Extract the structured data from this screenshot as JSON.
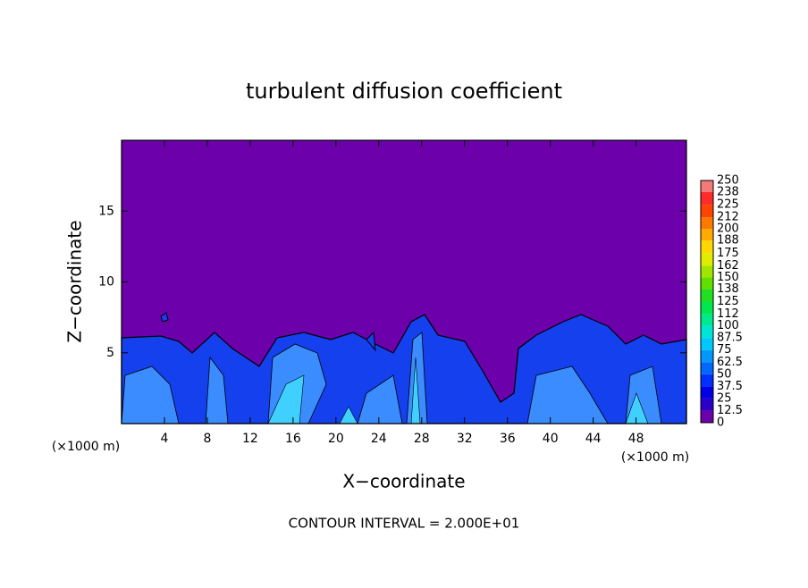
{
  "chart_data": {
    "type": "contour",
    "title": "turbulent diffusion coefficient",
    "x_label": "X−coordinate",
    "y_label": "Z−coordinate",
    "x_unit_label": "(×1000 m)",
    "footer": "CONTOUR INTERVAL = 2.000E+01",
    "xlim": [
      0,
      52.7
    ],
    "ylim": [
      0,
      20
    ],
    "xticks": [
      4,
      8,
      12,
      16,
      20,
      24,
      28,
      32,
      36,
      40,
      44,
      48
    ],
    "yticks": [
      5,
      10,
      15
    ],
    "colorbar": {
      "levels": [
        0,
        12.5,
        25,
        37.5,
        50,
        62.5,
        75,
        87.5,
        100,
        112,
        125,
        138,
        150,
        162,
        175,
        188,
        200,
        212,
        225,
        238,
        250
      ],
      "colors": [
        "#6c00aa",
        "#2a00c8",
        "#0000e6",
        "#0030ff",
        "#0068ff",
        "#0098ff",
        "#00c8ff",
        "#00e4d8",
        "#00e890",
        "#00e850",
        "#20e020",
        "#60e000",
        "#a0e600",
        "#e0ec00",
        "#ffd800",
        "#ffaa00",
        "#ff7800",
        "#ff4400",
        "#ff2a2a",
        "#f47a7a"
      ]
    }
  }
}
